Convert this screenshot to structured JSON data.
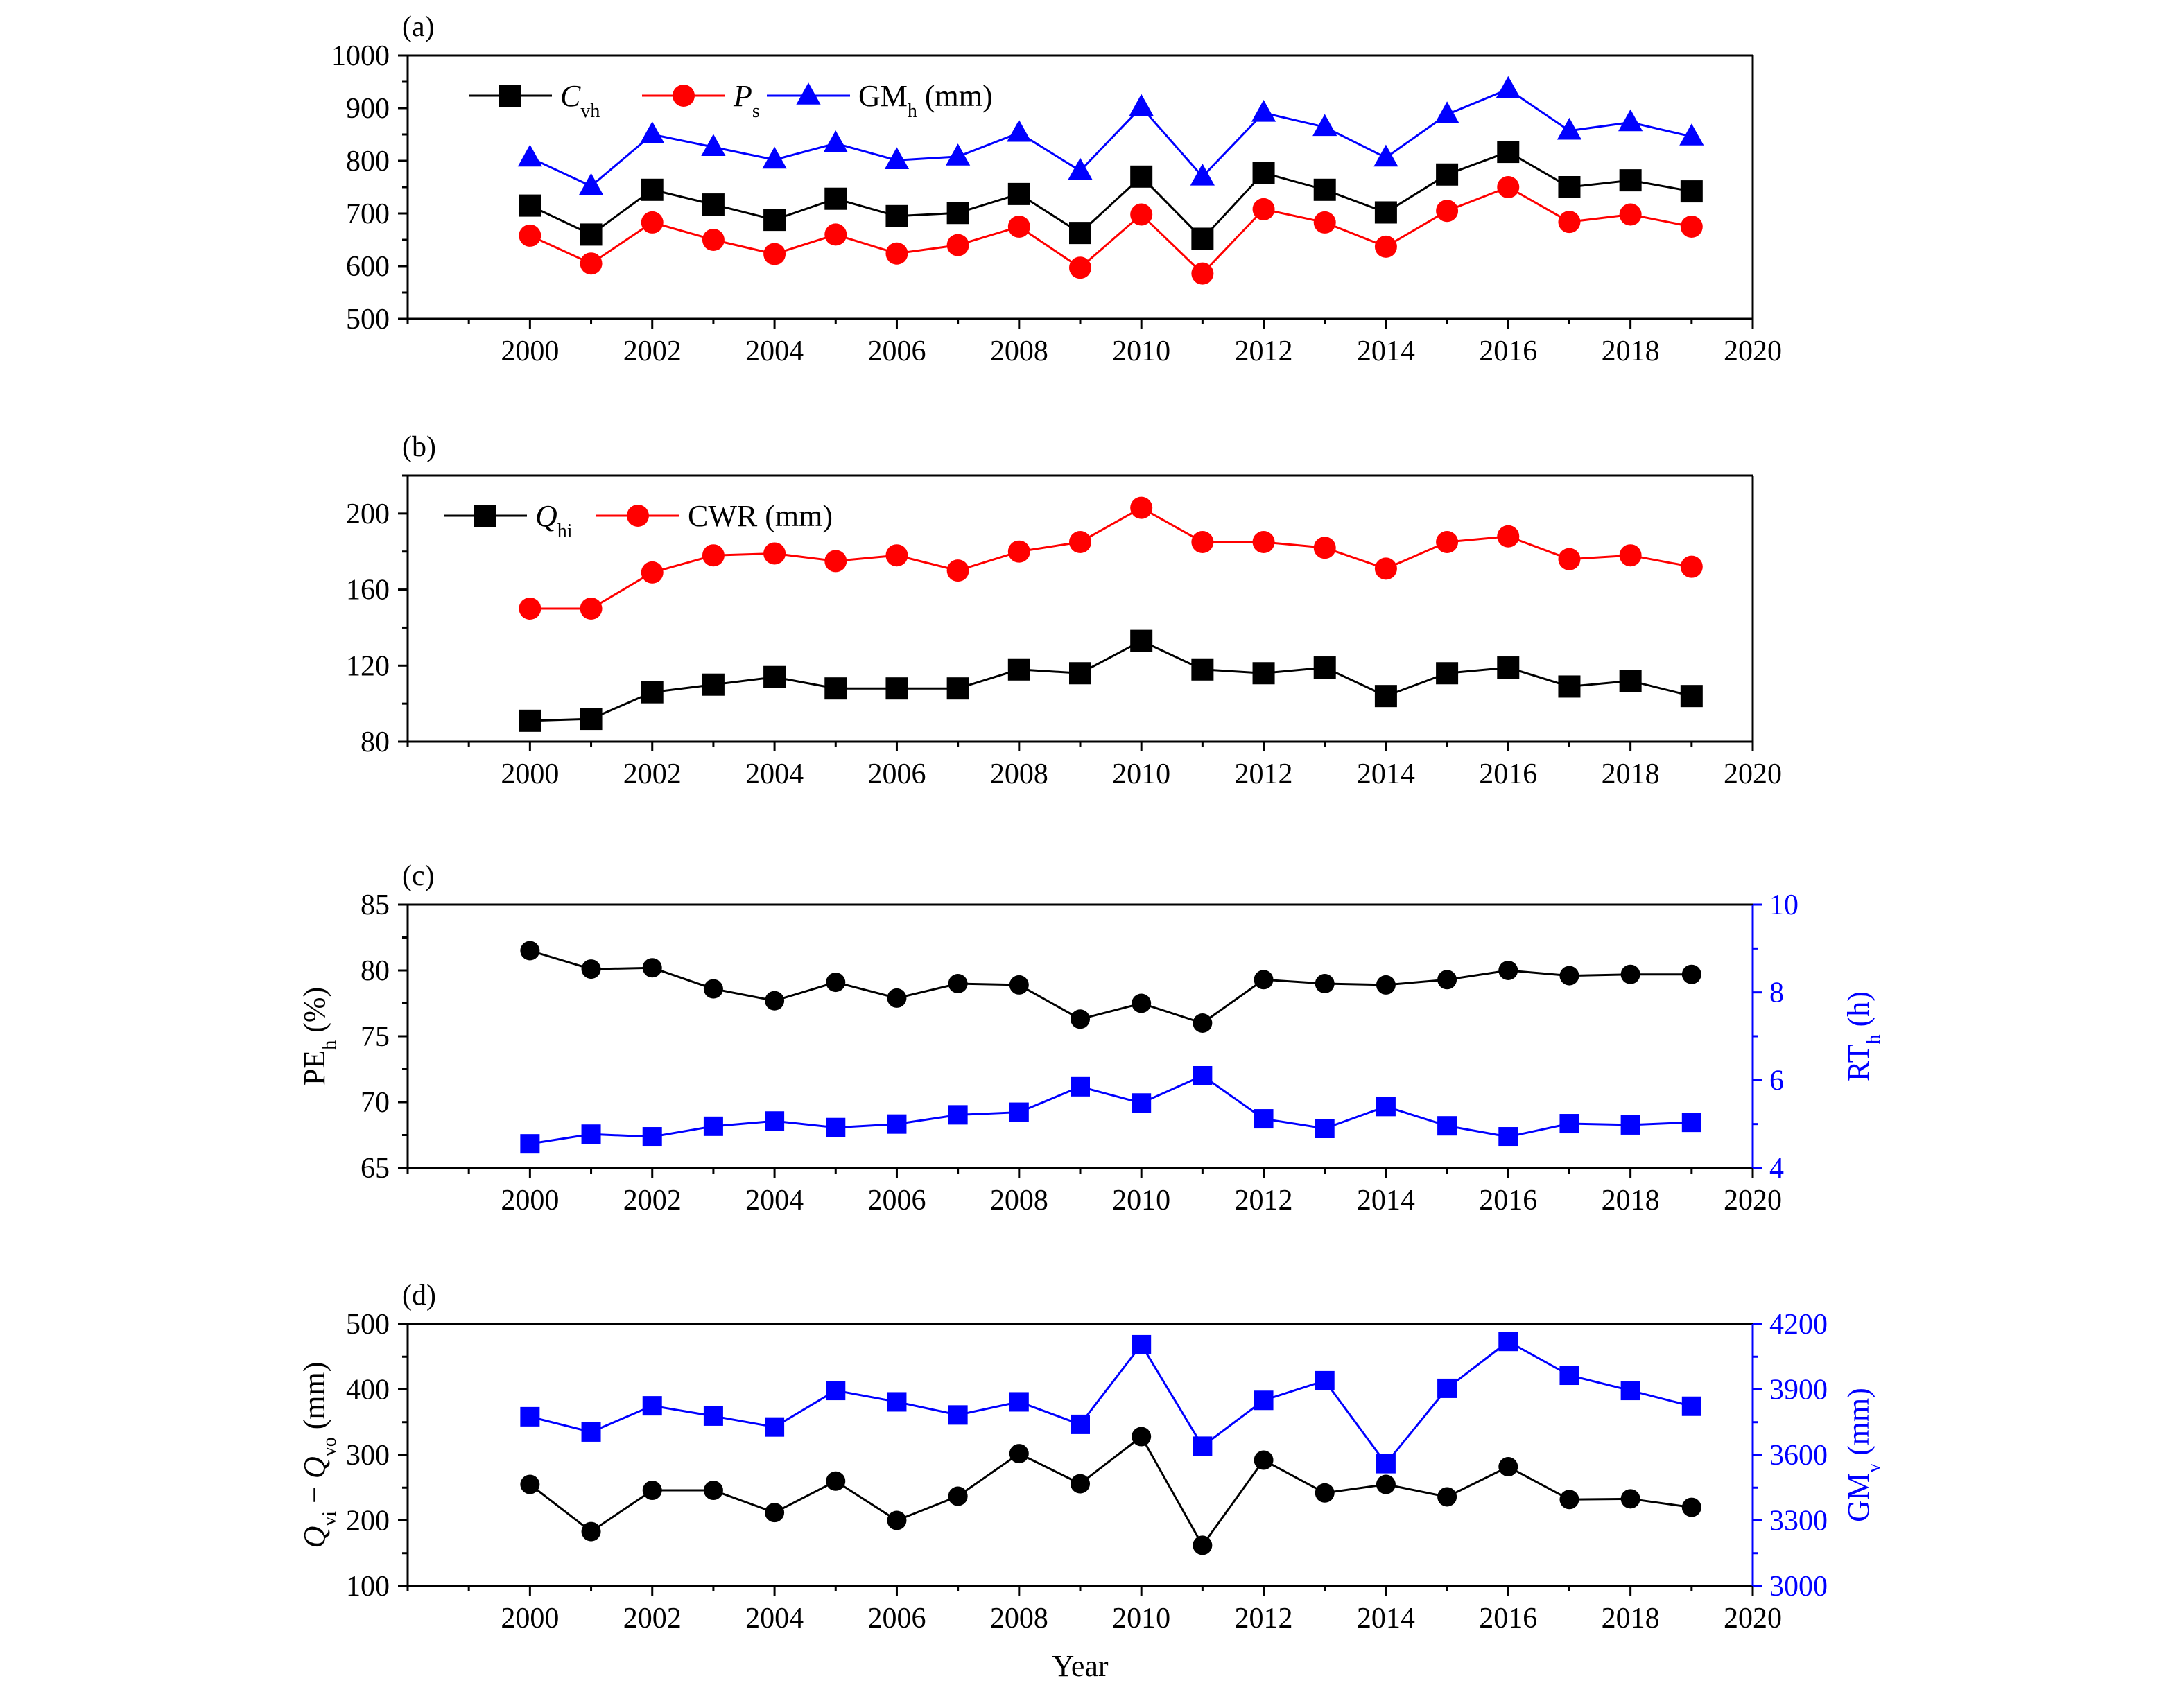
{
  "colors": {
    "black": "#000000",
    "red": "#ff0000",
    "blue": "#0000ff"
  },
  "x_axis_title": "Year",
  "chart_data": [
    {
      "panel_label": "(a)",
      "type": "line",
      "x": [
        2000,
        2001,
        2002,
        2003,
        2004,
        2005,
        2006,
        2007,
        2008,
        2009,
        2010,
        2011,
        2012,
        2013,
        2014,
        2015,
        2016,
        2017,
        2018,
        2019
      ],
      "xlim": [
        1998,
        2020
      ],
      "xticks": [
        2000,
        2002,
        2004,
        2006,
        2008,
        2010,
        2012,
        2014,
        2016,
        2018,
        2020
      ],
      "ylim": [
        500,
        1000
      ],
      "yticks": [
        500,
        600,
        700,
        800,
        900,
        1000
      ],
      "legend_placement": "top-left",
      "series": [
        {
          "name": "C",
          "name_sub": "vh",
          "italic": true,
          "marker": "square",
          "color": "#000000",
          "values": [
            715,
            660,
            745,
            717,
            688,
            728,
            695,
            701,
            737,
            663,
            770,
            652,
            777,
            745,
            702,
            774,
            817,
            750,
            763,
            742
          ]
        },
        {
          "name": "P",
          "name_sub": "s",
          "italic": true,
          "marker": "circle",
          "color": "#ff0000",
          "values": [
            658,
            605,
            683,
            650,
            623,
            660,
            624,
            640,
            675,
            597,
            698,
            586,
            708,
            683,
            637,
            705,
            750,
            684,
            698,
            675
          ]
        },
        {
          "name": "GM",
          "name_sub": "h",
          "name_suffix": " (mm)",
          "italic": false,
          "marker": "triangle",
          "color": "#0000ff",
          "values": [
            806,
            752,
            850,
            826,
            802,
            833,
            801,
            808,
            853,
            781,
            902,
            770,
            891,
            864,
            806,
            888,
            936,
            857,
            873,
            846
          ]
        }
      ]
    },
    {
      "panel_label": "(b)",
      "type": "line",
      "x": [
        2000,
        2001,
        2002,
        2003,
        2004,
        2005,
        2006,
        2007,
        2008,
        2009,
        2010,
        2011,
        2012,
        2013,
        2014,
        2015,
        2016,
        2017,
        2018,
        2019
      ],
      "xlim": [
        1998,
        2020
      ],
      "xticks": [
        2000,
        2002,
        2004,
        2006,
        2008,
        2010,
        2012,
        2014,
        2016,
        2018,
        2020
      ],
      "ylim": [
        80,
        220
      ],
      "yticks": [
        80,
        120,
        160,
        200
      ],
      "legend_placement": "top-left",
      "series": [
        {
          "name": "Q",
          "name_sub": "hi",
          "italic": true,
          "marker": "square",
          "color": "#000000",
          "values": [
            91,
            92,
            106,
            110,
            114,
            108,
            108,
            108,
            118,
            116,
            133,
            118,
            116,
            119,
            104,
            116,
            119,
            109,
            112,
            104
          ]
        },
        {
          "name": "CWR (mm)",
          "name_sub": "",
          "italic": false,
          "marker": "circle",
          "color": "#ff0000",
          "values": [
            150,
            150,
            169,
            178,
            179,
            175,
            178,
            170,
            180,
            185,
            203,
            185,
            185,
            182,
            171,
            185,
            188,
            176,
            178,
            172
          ]
        }
      ]
    },
    {
      "panel_label": "(c)",
      "type": "line",
      "x": [
        2000,
        2001,
        2002,
        2003,
        2004,
        2005,
        2006,
        2007,
        2008,
        2009,
        2010,
        2011,
        2012,
        2013,
        2014,
        2015,
        2016,
        2017,
        2018,
        2019
      ],
      "xlim": [
        1998,
        2020
      ],
      "xticks": [
        2000,
        2002,
        2004,
        2006,
        2008,
        2010,
        2012,
        2014,
        2016,
        2018,
        2020
      ],
      "ylim": [
        65,
        85
      ],
      "yticks": [
        65,
        70,
        75,
        80,
        85
      ],
      "ylabel": "PE",
      "ylabel_sub": "h",
      "ylabel_suffix": " (%)",
      "ylim_right": [
        4,
        10
      ],
      "yticks_right": [
        4,
        6,
        8,
        10
      ],
      "ylabel_right": "RT",
      "ylabel_right_sub": "h",
      "ylabel_right_suffix": " (h)",
      "series": [
        {
          "axis": "left",
          "marker": "circle",
          "color": "#000000",
          "line": true,
          "values": [
            81.5,
            80.1,
            80.2,
            78.6,
            77.7,
            79.1,
            77.9,
            79.0,
            78.9,
            76.3,
            77.5,
            76.0,
            79.3,
            79.0,
            78.9,
            79.3,
            80.0,
            79.6,
            79.7,
            79.7
          ]
        },
        {
          "axis": "right",
          "marker": "square",
          "color": "#0000ff",
          "line": true,
          "values": [
            4.55,
            4.77,
            4.71,
            4.95,
            5.07,
            4.92,
            5.0,
            5.21,
            5.27,
            5.85,
            5.48,
            6.1,
            5.12,
            4.9,
            5.4,
            4.96,
            4.71,
            5.01,
            4.98,
            5.04
          ]
        }
      ]
    },
    {
      "panel_label": "(d)",
      "type": "line",
      "x": [
        2000,
        2001,
        2002,
        2003,
        2004,
        2005,
        2006,
        2007,
        2008,
        2009,
        2010,
        2011,
        2012,
        2013,
        2014,
        2015,
        2016,
        2017,
        2018,
        2019
      ],
      "xlim": [
        1998,
        2020
      ],
      "xticks": [
        2000,
        2002,
        2004,
        2006,
        2008,
        2010,
        2012,
        2014,
        2016,
        2018,
        2020
      ],
      "ylim": [
        100,
        500
      ],
      "yticks": [
        100,
        200,
        300,
        400,
        500
      ],
      "ylabel_parts": [
        {
          "t": "Q",
          "sub": "vi",
          "italic": true
        },
        {
          "t": " − ",
          "sub": "",
          "italic": false
        },
        {
          "t": "Q",
          "sub": "vo",
          "italic": true
        },
        {
          "t": " (mm)",
          "sub": "",
          "italic": false
        }
      ],
      "ylim_right": [
        3000,
        4200
      ],
      "yticks_right": [
        3000,
        3300,
        3600,
        3900,
        4200
      ],
      "ylabel_right": "GM",
      "ylabel_right_sub": "v",
      "ylabel_right_suffix": " (mm)",
      "series": [
        {
          "axis": "left",
          "marker": "circle",
          "color": "#000000",
          "line": true,
          "values": [
            255,
            183,
            246,
            246,
            212,
            260,
            200,
            237,
            302,
            256,
            328,
            162,
            292,
            242,
            255,
            236,
            282,
            232,
            233,
            220
          ]
        },
        {
          "axis": "right",
          "marker": "square",
          "color": "#0000ff",
          "line": true,
          "values": [
            3775,
            3705,
            3825,
            3778,
            3728,
            3895,
            3843,
            3783,
            3843,
            3740,
            4105,
            3640,
            3850,
            3940,
            3560,
            3905,
            4120,
            3965,
            3895,
            3823
          ]
        }
      ]
    }
  ]
}
